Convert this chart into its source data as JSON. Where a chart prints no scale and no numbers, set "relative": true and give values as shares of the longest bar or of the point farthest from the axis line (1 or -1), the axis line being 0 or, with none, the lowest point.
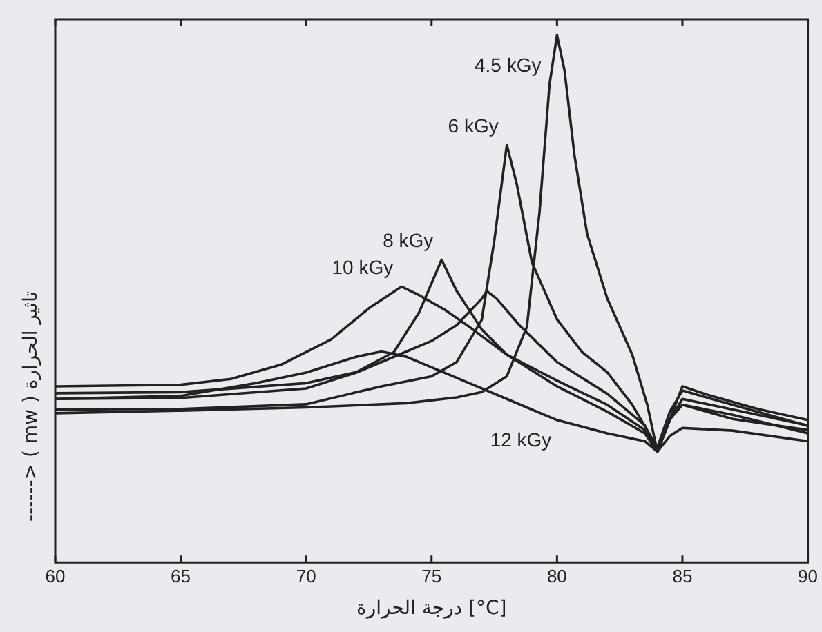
{
  "chart_data": {
    "type": "line",
    "relative": true,
    "xlabel": "درجة الحرارة [°C]",
    "ylabel": "------> ( mw ) تاثير الحرارة",
    "xlim": [
      60,
      90
    ],
    "xticks": [
      60,
      65,
      70,
      75,
      80,
      85,
      90
    ],
    "grid": false,
    "legend": false,
    "marker": "none",
    "line_style": "solid",
    "series": [
      {
        "color": "#222222",
        "x": [
          60,
          65,
          70,
          74,
          76,
          77,
          78,
          78.8,
          79.3,
          79.7,
          80,
          80.3,
          80.7,
          81.2,
          82,
          83,
          83.6,
          84,
          84.4,
          85,
          86,
          88,
          90
        ],
        "values": [
          0.283,
          0.288,
          0.294,
          0.302,
          0.313,
          0.323,
          0.353,
          0.447,
          0.663,
          0.906,
          1,
          0.933,
          0.771,
          0.623,
          0.501,
          0.394,
          0.299,
          0.21,
          0.259,
          0.334,
          0.318,
          0.291,
          0.27
        ]
      },
      {
        "color": "#222222",
        "x": [
          60,
          65,
          70,
          73,
          75,
          76,
          77,
          77.5,
          78,
          78.4,
          79,
          80,
          81,
          82,
          83,
          84,
          84.5,
          85,
          87,
          90
        ],
        "values": [
          0.29,
          0.291,
          0.3,
          0.334,
          0.353,
          0.38,
          0.46,
          0.61,
          0.792,
          0.717,
          0.569,
          0.461,
          0.399,
          0.361,
          0.299,
          0.218,
          0.286,
          0.326,
          0.299,
          0.259
        ]
      },
      {
        "color": "#222222",
        "x": [
          60,
          65,
          70,
          72,
          73.5,
          74.5,
          75.4,
          76,
          77,
          78,
          80,
          82,
          83.5,
          84,
          84.5,
          85,
          87,
          90
        ],
        "values": [
          0.321,
          0.323,
          0.34,
          0.361,
          0.399,
          0.474,
          0.574,
          0.515,
          0.442,
          0.394,
          0.334,
          0.286,
          0.245,
          0.21,
          0.272,
          0.299,
          0.28,
          0.245
        ]
      },
      {
        "color": "#222222",
        "x": [
          60,
          65,
          67,
          69,
          71,
          72.5,
          73.8,
          74.5,
          75.5,
          76.5,
          78,
          80,
          82,
          83.5,
          84,
          84.5,
          85,
          87,
          90
        ],
        "values": [
          0.334,
          0.337,
          0.348,
          0.375,
          0.423,
          0.482,
          0.523,
          0.507,
          0.48,
          0.447,
          0.394,
          0.345,
          0.299,
          0.251,
          0.21,
          0.272,
          0.299,
          0.272,
          0.251
        ]
      },
      {
        "color": "#222222",
        "x": [
          60,
          65,
          70,
          72,
          73,
          74,
          75,
          76,
          77,
          77.2,
          77.6,
          78.5,
          80,
          82,
          83.5,
          84,
          84.5,
          85,
          87,
          90
        ],
        "values": [
          0.31,
          0.312,
          0.33,
          0.36,
          0.38,
          0.4,
          0.42,
          0.45,
          0.5,
          0.515,
          0.5,
          0.45,
          0.38,
          0.32,
          0.26,
          0.21,
          0.27,
          0.31,
          0.29,
          0.26
        ]
      },
      {
        "color": "#222222",
        "x": [
          60,
          65,
          68,
          70,
          72,
          73,
          74,
          75,
          76,
          78,
          80,
          82,
          83.5,
          84,
          84.5,
          85,
          87,
          90
        ],
        "values": [
          0.31,
          0.316,
          0.34,
          0.36,
          0.39,
          0.4,
          0.39,
          0.37,
          0.35,
          0.31,
          0.27,
          0.245,
          0.23,
          0.21,
          0.24,
          0.255,
          0.25,
          0.23
        ]
      }
    ],
    "annotations": [
      {
        "text": "4.5 kGy",
        "x": 79.7,
        "y": 0.906
      },
      {
        "text": "6 kGy",
        "x": 78,
        "y": 0.792
      },
      {
        "text": "8 kGy",
        "x": 75.4,
        "y": 0.574
      },
      {
        "text": "10 kGy",
        "x": 73.8,
        "y": 0.523
      },
      {
        "text": "12 kGy",
        "x": 80,
        "y": 0.27
      }
    ]
  }
}
